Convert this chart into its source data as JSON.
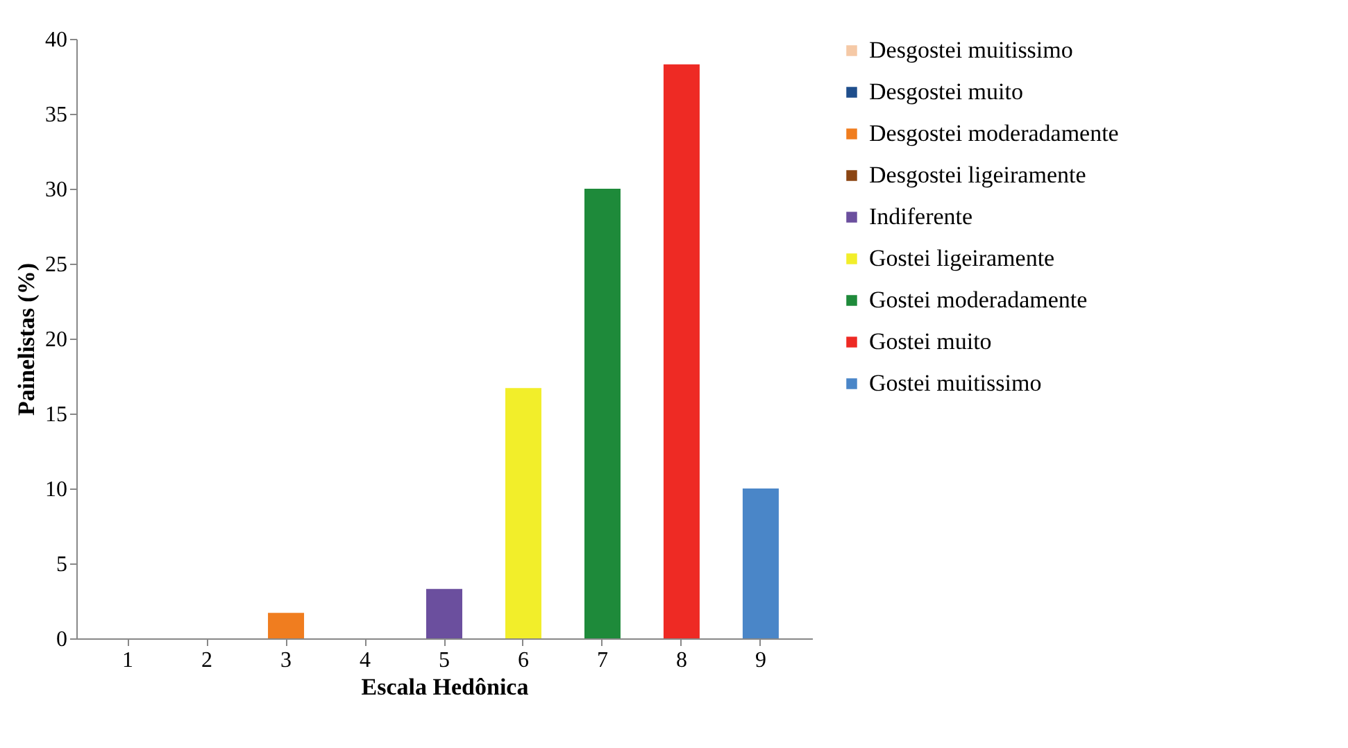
{
  "chart_data": {
    "type": "bar",
    "xlabel": "Escala Hedônica",
    "ylabel": "Painelistas (%)",
    "categories": [
      "1",
      "2",
      "3",
      "4",
      "5",
      "6",
      "7",
      "8",
      "9"
    ],
    "series": [
      {
        "name": "Desgostei muitissimo",
        "color": "#f5c9a6",
        "values": [
          0,
          null,
          null,
          null,
          null,
          null,
          null,
          null,
          null
        ]
      },
      {
        "name": "Desgostei muito",
        "color": "#1f4e8c",
        "values": [
          null,
          0,
          null,
          null,
          null,
          null,
          null,
          null,
          null
        ]
      },
      {
        "name": "Desgostei moderadamente",
        "color": "#f07d1f",
        "values": [
          null,
          null,
          1.7,
          null,
          null,
          null,
          null,
          null,
          null
        ]
      },
      {
        "name": "Desgostei ligeiramente",
        "color": "#8b4513",
        "values": [
          null,
          null,
          null,
          0,
          null,
          null,
          null,
          null,
          null
        ]
      },
      {
        "name": "Indiferente",
        "color": "#6b4f9e",
        "values": [
          null,
          null,
          null,
          null,
          3.3,
          null,
          null,
          null,
          null
        ]
      },
      {
        "name": "Gostei ligeiramente",
        "color": "#f2ee2a",
        "values": [
          null,
          null,
          null,
          null,
          null,
          16.7,
          null,
          null,
          null
        ]
      },
      {
        "name": "Gostei moderadamente",
        "color": "#1e8a3a",
        "values": [
          null,
          null,
          null,
          null,
          null,
          null,
          30,
          null,
          null
        ]
      },
      {
        "name": "Gostei muito",
        "color": "#ee2a24",
        "values": [
          null,
          null,
          null,
          null,
          null,
          null,
          null,
          38.3,
          null
        ]
      },
      {
        "name": "Gostei muitissimo",
        "color": "#4a86c8",
        "values": [
          null,
          null,
          null,
          null,
          null,
          null,
          null,
          null,
          10
        ]
      }
    ],
    "ylim": [
      0,
      40
    ],
    "yticks": [
      0,
      5,
      10,
      15,
      20,
      25,
      30,
      35,
      40
    ],
    "grid": false,
    "legend": "right"
  }
}
